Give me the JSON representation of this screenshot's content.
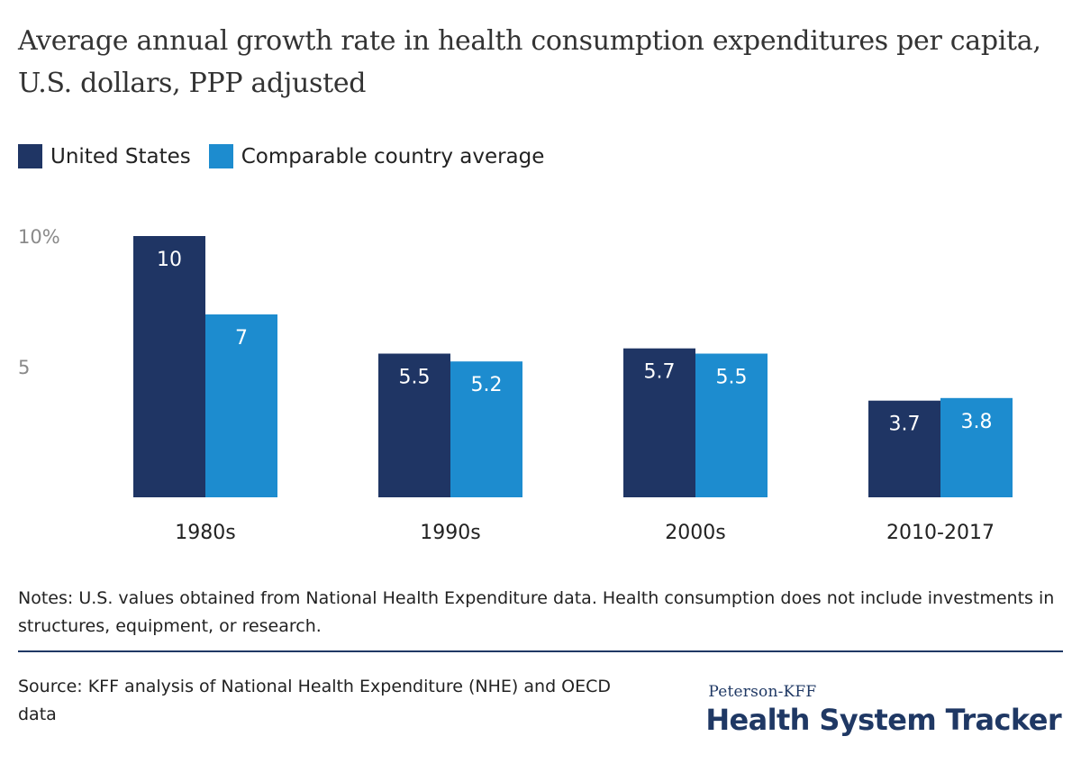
{
  "title": "Average annual growth rate in health consumption expenditures per capita, U.S. dollars, PPP adjusted",
  "legend": [
    {
      "label": "United States",
      "color": "#1f3564"
    },
    {
      "label": "Comparable country average",
      "color": "#1d8ccf"
    }
  ],
  "chart_data": {
    "type": "bar",
    "categories": [
      "1980s",
      "1990s",
      "2000s",
      "2010-2017"
    ],
    "series": [
      {
        "name": "United States",
        "values": [
          10,
          5.5,
          5.7,
          3.7
        ],
        "color": "#1f3564"
      },
      {
        "name": "Comparable country average",
        "values": [
          7,
          5.2,
          5.5,
          3.8
        ],
        "color": "#1d8ccf"
      }
    ],
    "data_labels": [
      [
        "10",
        "5.5",
        "5.7",
        "3.7"
      ],
      [
        "7",
        "5.2",
        "5.5",
        "3.8"
      ]
    ],
    "yticks": [
      {
        "value": 10,
        "label": "10%"
      },
      {
        "value": 5,
        "label": "5"
      }
    ],
    "ylim": [
      0,
      10
    ],
    "grid": false,
    "legend_position": "top-left"
  },
  "notes": "Notes: U.S. values obtained from National Health Expenditure data. Health consumption does not include investments in structures, equipment, or research.",
  "source": "Source: KFF analysis of National Health Expenditure (NHE) and OECD data",
  "logo": {
    "small": "Peterson-KFF",
    "big": "Health System Tracker"
  }
}
